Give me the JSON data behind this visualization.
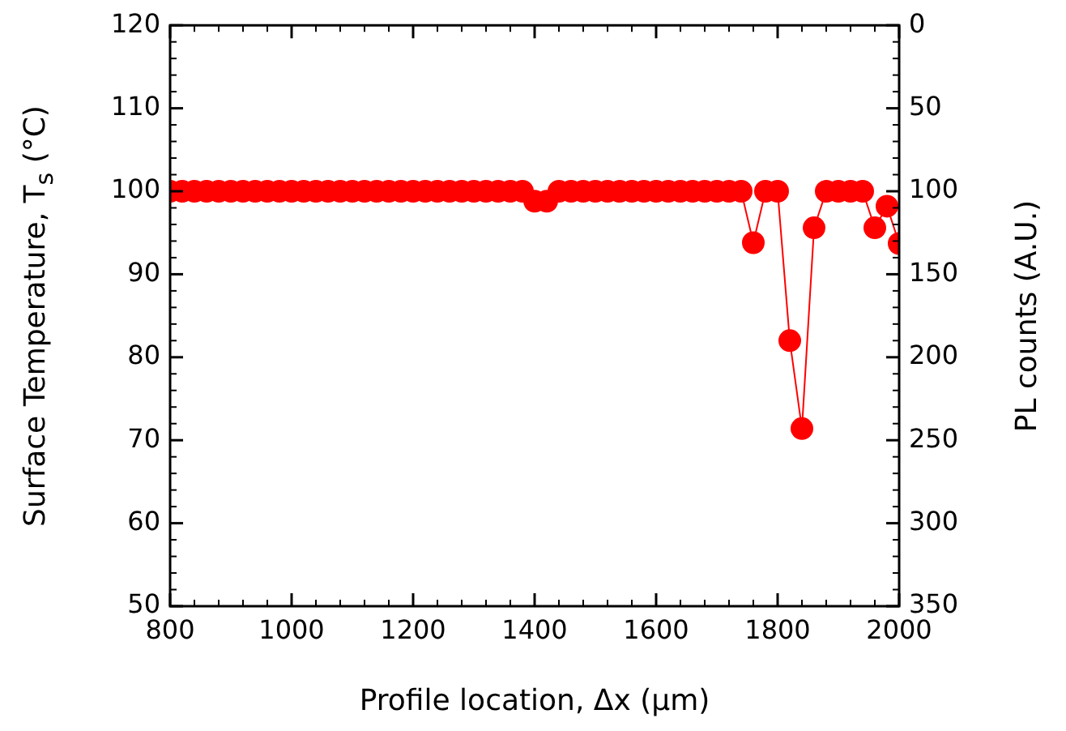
{
  "chart_data": {
    "type": "line",
    "xlabel": "Profile location, Δx (μm)",
    "ylabel": "Surface Temperature, T$_{s}$ (°C)",
    "y2label": "PL counts (A.U.)",
    "x": [
      800,
      820,
      840,
      860,
      880,
      900,
      920,
      940,
      960,
      980,
      1000,
      1020,
      1040,
      1060,
      1080,
      1100,
      1120,
      1140,
      1160,
      1180,
      1200,
      1220,
      1240,
      1260,
      1280,
      1300,
      1320,
      1340,
      1360,
      1380,
      1400,
      1420,
      1440,
      1460,
      1480,
      1500,
      1520,
      1540,
      1560,
      1580,
      1600,
      1620,
      1640,
      1660,
      1680,
      1700,
      1720,
      1740,
      1760,
      1780,
      1800,
      1820,
      1840,
      1860,
      1880,
      1900,
      1920,
      1940,
      1960,
      1980,
      2000
    ],
    "series": [
      {
        "color": "#ff0000",
        "values": [
          100,
          100,
          100,
          100,
          100,
          100,
          100,
          100,
          100,
          100,
          100,
          100,
          100,
          100,
          100,
          100,
          100,
          100,
          100,
          100,
          100,
          100,
          100,
          100,
          100,
          100,
          100,
          100,
          100,
          100,
          98.8,
          98.8,
          100,
          100,
          100,
          100,
          100,
          100,
          100,
          100,
          100,
          100,
          100,
          100,
          100,
          100,
          100,
          100,
          93.8,
          100,
          100,
          82,
          71.4,
          95.6,
          100,
          100,
          100,
          100,
          95.6,
          98.2,
          93.7
        ]
      }
    ],
    "xlim": [
      800,
      2000
    ],
    "xticks": [
      800,
      1000,
      1200,
      1400,
      1600,
      1800,
      2000
    ],
    "ylim": [
      50,
      120
    ],
    "yticks": [
      50,
      60,
      70,
      80,
      90,
      100,
      110,
      120
    ],
    "y2lim": [
      350,
      0
    ],
    "y2ticks": [
      0,
      50,
      100,
      150,
      200,
      250,
      300,
      350
    ],
    "grid": false,
    "legend": false,
    "marker": "circle",
    "line_style": "solid"
  }
}
